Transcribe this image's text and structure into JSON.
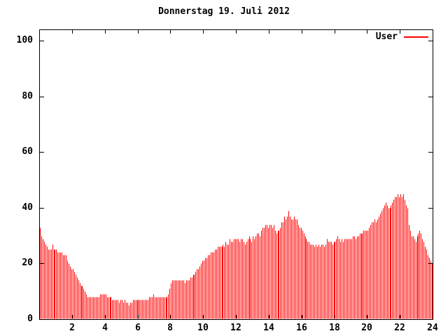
{
  "title": "Donnerstag 19. Juli 2012",
  "legend": {
    "label": "User",
    "color": "#ff0000"
  },
  "colors": {
    "bar": "#ff0000",
    "axis": "#000000",
    "background": "#ffffff",
    "text": "#000000"
  },
  "chart_data": {
    "type": "bar",
    "style": "impulses",
    "title": "Donnerstag 19. Juli 2012",
    "xlabel": "",
    "ylabel": "",
    "xlim": [
      0,
      24
    ],
    "ylim": [
      0,
      104
    ],
    "xticks": [
      2,
      4,
      6,
      8,
      10,
      12,
      14,
      16,
      18,
      20,
      22,
      24
    ],
    "yticks": [
      0,
      20,
      40,
      60,
      80,
      100
    ],
    "grid": false,
    "legend_position": "top-right",
    "x_unit": "hour_of_day",
    "interval_minutes": 5,
    "series": [
      {
        "name": "User",
        "color": "#ff0000",
        "start_hour": 0,
        "values": [
          33,
          30,
          29,
          28,
          27,
          26,
          25,
          25,
          25,
          27,
          25,
          25,
          25,
          24,
          24,
          24,
          24,
          23,
          23,
          23,
          21,
          20,
          19,
          18,
          18,
          17,
          16,
          15,
          14,
          13,
          12,
          12,
          11,
          10,
          9,
          8,
          8,
          8,
          8,
          8,
          8,
          8,
          8,
          8,
          9,
          9,
          9,
          9,
          9,
          8,
          8,
          8,
          8,
          7,
          7,
          7,
          7,
          7,
          6,
          7,
          7,
          6,
          7,
          6,
          6,
          5,
          6,
          6,
          7,
          7,
          7,
          7,
          7,
          7,
          7,
          7,
          7,
          7,
          7,
          7,
          8,
          8,
          8,
          9,
          8,
          8,
          8,
          8,
          8,
          8,
          8,
          8,
          8,
          8,
          9,
          11,
          13,
          14,
          14,
          14,
          14,
          14,
          14,
          14,
          14,
          14,
          13,
          14,
          14,
          14,
          15,
          15,
          16,
          16,
          17,
          18,
          18,
          19,
          20,
          21,
          21,
          22,
          22,
          23,
          23,
          24,
          24,
          24,
          25,
          25,
          26,
          26,
          26,
          26,
          27,
          26,
          28,
          27,
          27,
          29,
          28,
          28,
          29,
          29,
          29,
          29,
          28,
          29,
          29,
          28,
          27,
          28,
          29,
          30,
          29,
          28,
          30,
          29,
          30,
          31,
          31,
          30,
          32,
          33,
          33,
          34,
          34,
          33,
          34,
          34,
          33,
          34,
          32,
          31,
          32,
          32,
          33,
          35,
          35,
          37,
          36,
          37,
          39,
          37,
          36,
          36,
          37,
          36,
          36,
          34,
          33,
          33,
          32,
          31,
          30,
          29,
          28,
          28,
          27,
          27,
          27,
          26,
          27,
          26,
          27,
          26,
          27,
          27,
          26,
          27,
          29,
          28,
          28,
          28,
          27,
          28,
          28,
          29,
          30,
          29,
          28,
          29,
          28,
          29,
          29,
          29,
          29,
          29,
          29,
          30,
          30,
          29,
          30,
          30,
          31,
          31,
          31,
          32,
          32,
          32,
          32,
          33,
          34,
          35,
          35,
          36,
          35,
          36,
          37,
          38,
          39,
          40,
          41,
          42,
          41,
          40,
          40,
          41,
          42,
          43,
          44,
          44,
          45,
          44,
          45,
          44,
          45,
          43,
          41,
          40,
          34,
          32,
          30,
          30,
          29,
          28,
          30,
          31,
          32,
          31,
          29,
          28,
          26,
          25,
          23,
          22,
          21,
          20
        ]
      }
    ]
  }
}
